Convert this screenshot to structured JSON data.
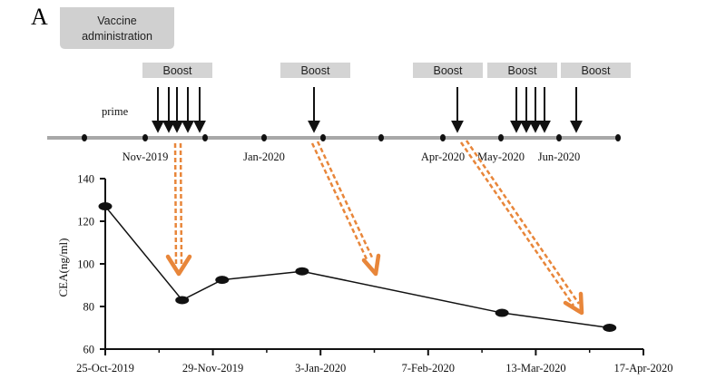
{
  "panel_label": "A",
  "vaccine_box": {
    "line1": "Vaccine",
    "line2": "administration"
  },
  "prime_label": "prime",
  "boost_label": "Boost",
  "boosts": [
    {
      "label": "Boost"
    },
    {
      "label": "Boost"
    },
    {
      "label": "Boost"
    },
    {
      "label": "Boost"
    },
    {
      "label": "Boost"
    }
  ],
  "timeline_labels": [
    "Nov-2019",
    "Jan-2020",
    "Apr-2020",
    "May-2020",
    "Jun-2020"
  ],
  "colors": {
    "arrow": "#E8863A",
    "boost_box": "#D4D4D4",
    "vac_box": "#D0D0D0",
    "timeline": "#A8A8A8"
  },
  "chart_data": {
    "type": "line",
    "title": "",
    "xlabel": "",
    "ylabel": "CEA(ng/ml)",
    "ylim": [
      60,
      140
    ],
    "yticks": [
      60,
      80,
      100,
      120,
      140
    ],
    "xlim_days": [
      0,
      175
    ],
    "xtick_days": [
      0,
      35,
      70,
      105,
      140,
      175
    ],
    "xtick_labels": [
      "25-Oct-2019",
      "29-Nov-2019",
      "3-Jan-2020",
      "7-Feb-2020",
      "13-Mar-2020",
      "17-Apr-2020"
    ],
    "series": [
      {
        "name": "CEA",
        "x_days": [
          0,
          25,
          38,
          64,
          129,
          164
        ],
        "values": [
          127,
          83,
          92.5,
          96.5,
          77,
          70
        ]
      }
    ]
  }
}
